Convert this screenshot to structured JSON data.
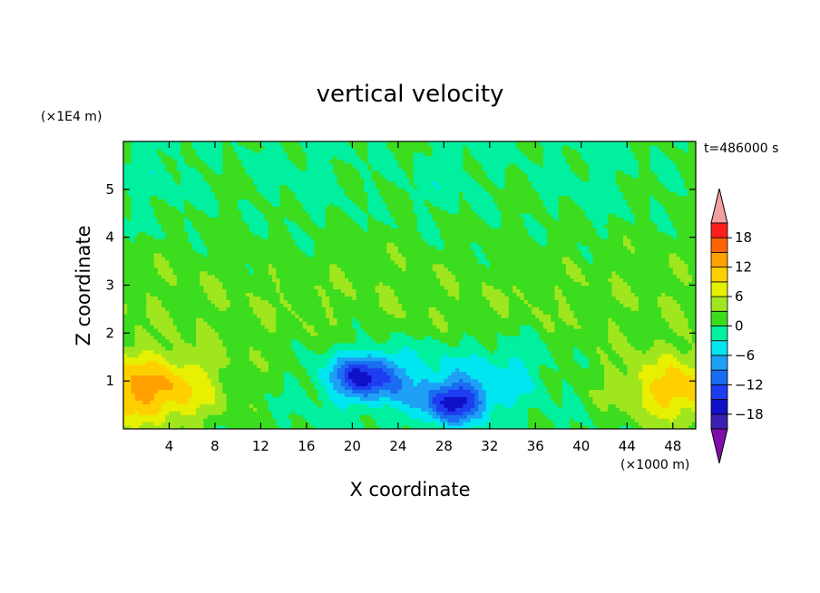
{
  "chart_data": {
    "type": "heatmap",
    "title": "vertical velocity",
    "xlabel": "X coordinate",
    "ylabel": "Z coordinate",
    "x_unit": "(×1000 m)",
    "y_unit": "(×1E4 m)",
    "time_label": "t=486000 s",
    "xlim": [
      0,
      50
    ],
    "ylim": [
      0,
      6
    ],
    "x_ticks": [
      4,
      8,
      12,
      16,
      20,
      24,
      28,
      32,
      36,
      40,
      44,
      48
    ],
    "y_ticks": [
      1,
      2,
      3,
      4,
      5
    ],
    "colorbar": {
      "levels": [
        -21,
        -18,
        -15,
        -12,
        -9,
        -6,
        -3,
        0,
        3,
        6,
        9,
        12,
        15,
        18,
        21
      ],
      "tick_values": [
        -18,
        -12,
        -6,
        0,
        6,
        12,
        18
      ],
      "tick_labels": [
        "−18",
        "−12",
        "−6",
        "0",
        "6",
        "12",
        "18"
      ],
      "colors": [
        "#7f0fa8",
        "#3a1fb0",
        "#1010c8",
        "#1e3cf0",
        "#1a6cf0",
        "#1ea0f5",
        "#00e6f0",
        "#00f0a0",
        "#3cdc1e",
        "#a0e61e",
        "#e6f000",
        "#ffd000",
        "#ffa000",
        "#ff6400",
        "#ff1e1e",
        "#f0a0a0"
      ],
      "extend": "both"
    },
    "features": [
      {
        "name": "updraft-left",
        "x": 2,
        "z": 0.8,
        "max_value": 12
      },
      {
        "name": "updraft-right",
        "x": 48,
        "z": 0.8,
        "max_value": 9
      },
      {
        "name": "downdraft-center-left",
        "x": 21,
        "z": 1.1,
        "min_value": -15
      },
      {
        "name": "downdraft-center-right",
        "x": 29,
        "z": 0.5,
        "min_value": -15
      }
    ]
  }
}
